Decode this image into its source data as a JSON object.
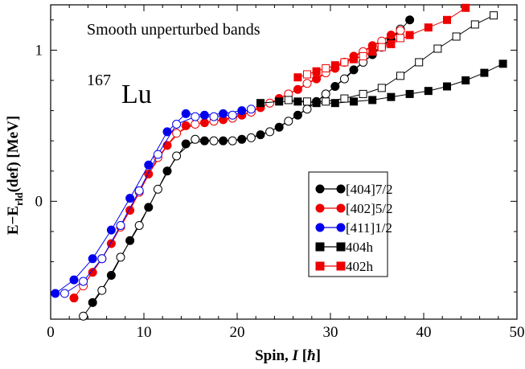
{
  "chart_data": {
    "type": "line",
    "annotations": {
      "header": "Smooth unperturbed bands",
      "nucleus_mass": "167",
      "nucleus_symbol": "Lu"
    },
    "xlabel": {
      "prefix": "Spin, ",
      "var": "I",
      "unit_open": " [",
      "unit": "ħ",
      "unit_close": "]"
    },
    "ylabel": {
      "base": "E−E",
      "sub": "rld",
      "suffix": "(def) [MeV]"
    },
    "xlim": [
      0,
      50
    ],
    "ylim": [
      -0.78,
      1.3
    ],
    "xticks": [
      0,
      10,
      20,
      30,
      40,
      50
    ],
    "yticks": [
      0,
      1
    ],
    "legend_position": "lower-right",
    "legend": [
      {
        "label": "[404]7/2",
        "marker": "circle",
        "color": "#000000"
      },
      {
        "label": "[402]5/2",
        "marker": "circle",
        "color": "#ee0000"
      },
      {
        "label": "[411]1/2",
        "marker": "circle",
        "color": "#0000ee"
      },
      {
        "label": "404h",
        "marker": "square",
        "color": "#000000"
      },
      {
        "label": "402h",
        "marker": "square",
        "color": "#ee0000"
      }
    ],
    "series": [
      {
        "name": "[404]7/2",
        "color": "#000000",
        "marker": "circle",
        "filled": true,
        "points": [
          [
            4.5,
            -0.67
          ],
          [
            6.5,
            -0.49
          ],
          [
            8.5,
            -0.26
          ],
          [
            10.5,
            -0.04
          ],
          [
            12.5,
            0.2
          ],
          [
            14.5,
            0.38
          ],
          [
            16.5,
            0.4
          ],
          [
            18.5,
            0.4
          ],
          [
            20.5,
            0.41
          ],
          [
            22.5,
            0.44
          ],
          [
            24.5,
            0.49
          ],
          [
            26.5,
            0.57
          ],
          [
            28.5,
            0.66
          ],
          [
            30.5,
            0.76
          ],
          [
            32.5,
            0.87
          ],
          [
            34.5,
            0.97
          ],
          [
            36.5,
            1.07
          ],
          [
            38.5,
            1.2
          ]
        ]
      },
      {
        "name": "[404]7/2 (α=−1/2)",
        "color": "#000000",
        "marker": "circle",
        "filled": false,
        "points": [
          [
            3.5,
            -0.76
          ],
          [
            5.5,
            -0.59
          ],
          [
            7.5,
            -0.37
          ],
          [
            9.5,
            -0.16
          ],
          [
            11.5,
            0.08
          ],
          [
            13.5,
            0.3
          ],
          [
            15.5,
            0.41
          ],
          [
            17.5,
            0.4
          ],
          [
            19.5,
            0.4
          ],
          [
            21.5,
            0.42
          ],
          [
            23.5,
            0.46
          ],
          [
            25.5,
            0.53
          ],
          [
            27.5,
            0.61
          ],
          [
            29.5,
            0.71
          ],
          [
            31.5,
            0.81
          ],
          [
            33.5,
            0.92
          ],
          [
            35.5,
            1.02
          ],
          [
            37.5,
            1.14
          ]
        ]
      },
      {
        "name": "[402]5/2",
        "color": "#ee0000",
        "marker": "circle",
        "filled": true,
        "points": [
          [
            2.5,
            -0.64
          ],
          [
            4.5,
            -0.47
          ],
          [
            6.5,
            -0.28
          ],
          [
            8.5,
            -0.06
          ],
          [
            10.5,
            0.18
          ],
          [
            12.5,
            0.37
          ],
          [
            14.5,
            0.5
          ],
          [
            16.5,
            0.52
          ],
          [
            18.5,
            0.54
          ],
          [
            20.5,
            0.57
          ],
          [
            22.5,
            0.62
          ],
          [
            24.5,
            0.68
          ],
          [
            26.5,
            0.74
          ],
          [
            28.5,
            0.81
          ],
          [
            30.5,
            0.88
          ],
          [
            32.5,
            0.96
          ],
          [
            34.5,
            1.03
          ],
          [
            36.5,
            1.1
          ]
        ]
      },
      {
        "name": "[402]5/2 (α=−1/2)",
        "color": "#ee0000",
        "marker": "circle",
        "filled": false,
        "points": [
          [
            3.5,
            -0.56
          ],
          [
            5.5,
            -0.38
          ],
          [
            7.5,
            -0.17
          ],
          [
            9.5,
            0.06
          ],
          [
            11.5,
            0.29
          ],
          [
            13.5,
            0.45
          ],
          [
            15.5,
            0.51
          ],
          [
            17.5,
            0.53
          ],
          [
            19.5,
            0.55
          ],
          [
            21.5,
            0.59
          ],
          [
            23.5,
            0.65
          ],
          [
            25.5,
            0.71
          ],
          [
            27.5,
            0.78
          ],
          [
            29.5,
            0.85
          ],
          [
            31.5,
            0.92
          ],
          [
            33.5,
            0.99
          ],
          [
            35.5,
            1.06
          ],
          [
            37.5,
            1.13
          ]
        ]
      },
      {
        "name": "[411]1/2",
        "color": "#0000ee",
        "marker": "circle",
        "filled": true,
        "points": [
          [
            0.5,
            -0.61
          ],
          [
            2.5,
            -0.52
          ],
          [
            4.5,
            -0.38
          ],
          [
            6.5,
            -0.19
          ],
          [
            8.5,
            0.02
          ],
          [
            10.5,
            0.24
          ],
          [
            12.5,
            0.46
          ],
          [
            14.5,
            0.58
          ],
          [
            16.5,
            0.57
          ],
          [
            18.5,
            0.58
          ],
          [
            20.5,
            0.6
          ]
        ]
      },
      {
        "name": "[411]1/2 (α=−1/2)",
        "color": "#0000ee",
        "marker": "circle",
        "filled": false,
        "points": [
          [
            1.5,
            -0.61
          ],
          [
            3.5,
            -0.53
          ],
          [
            5.5,
            -0.38
          ],
          [
            7.5,
            -0.16
          ],
          [
            9.5,
            0.07
          ],
          [
            11.5,
            0.31
          ],
          [
            13.5,
            0.51
          ],
          [
            15.5,
            0.56
          ],
          [
            17.5,
            0.56
          ],
          [
            19.5,
            0.57
          ],
          [
            21.5,
            0.61
          ]
        ]
      },
      {
        "name": "404h",
        "color": "#000000",
        "marker": "square",
        "filled": true,
        "points": [
          [
            22.5,
            0.65
          ],
          [
            24.5,
            0.66
          ],
          [
            26.5,
            0.66
          ],
          [
            28.5,
            0.65
          ],
          [
            30.5,
            0.65
          ],
          [
            32.5,
            0.66
          ],
          [
            34.5,
            0.67
          ],
          [
            36.5,
            0.69
          ],
          [
            38.5,
            0.71
          ],
          [
            40.5,
            0.73
          ],
          [
            42.5,
            0.76
          ],
          [
            44.5,
            0.8
          ],
          [
            46.5,
            0.85
          ],
          [
            48.5,
            0.91
          ]
        ]
      },
      {
        "name": "404h (α=−1/2)",
        "color": "#000000",
        "marker": "square",
        "filled": false,
        "points": [
          [
            25.5,
            0.67
          ],
          [
            27.5,
            0.66
          ],
          [
            29.5,
            0.66
          ],
          [
            31.5,
            0.68
          ],
          [
            33.5,
            0.71
          ],
          [
            35.5,
            0.75
          ],
          [
            37.5,
            0.83
          ],
          [
            39.5,
            0.92
          ],
          [
            41.5,
            1.01
          ],
          [
            43.5,
            1.09
          ],
          [
            45.5,
            1.17
          ],
          [
            47.5,
            1.23
          ]
        ]
      },
      {
        "name": "402h",
        "color": "#ee0000",
        "marker": "square",
        "filled": true,
        "points": [
          [
            26.5,
            0.82
          ],
          [
            28.5,
            0.86
          ],
          [
            30.5,
            0.9
          ],
          [
            32.5,
            0.94
          ],
          [
            34.5,
            0.99
          ],
          [
            36.5,
            1.04
          ],
          [
            38.5,
            1.1
          ],
          [
            40.5,
            1.15
          ],
          [
            42.5,
            1.2
          ],
          [
            44.5,
            1.28
          ]
        ]
      },
      {
        "name": "402h (α=−1/2)",
        "color": "#ee0000",
        "marker": "square",
        "filled": false,
        "points": [
          [
            27.5,
            0.84
          ],
          [
            29.5,
            0.88
          ],
          [
            31.5,
            0.92
          ],
          [
            33.5,
            0.96
          ],
          [
            35.5,
            1.02
          ],
          [
            37.5,
            1.08
          ]
        ]
      }
    ]
  }
}
